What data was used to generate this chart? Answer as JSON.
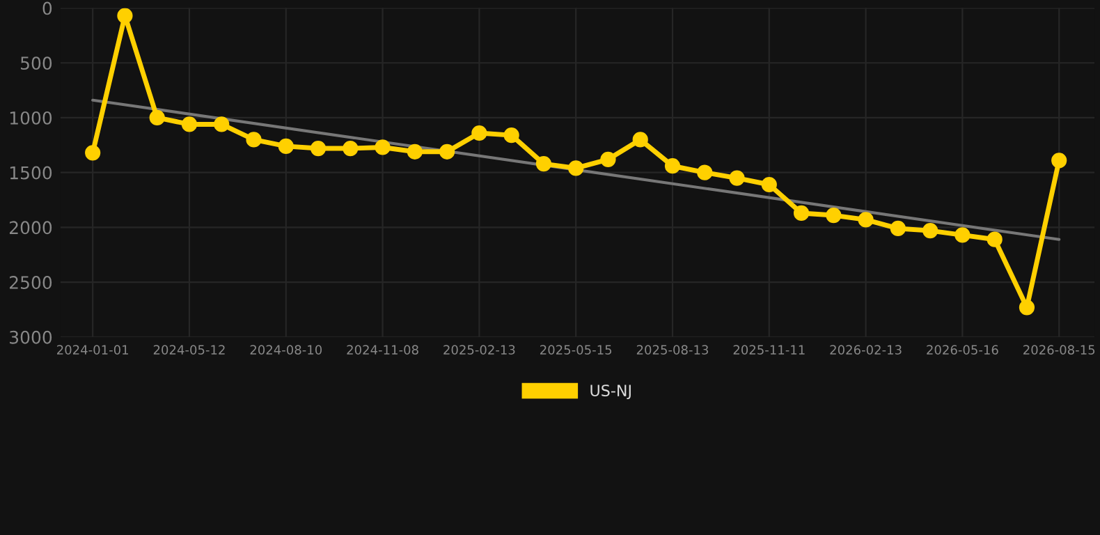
{
  "chart_data": {
    "type": "line",
    "categories": [
      "2024-01-01",
      null,
      null,
      "2024-05-12",
      null,
      null,
      "2024-08-10",
      null,
      null,
      "2024-11-08",
      null,
      null,
      "2025-02-13",
      null,
      null,
      "2025-05-15",
      null,
      null,
      "2025-08-13",
      null,
      null,
      "2025-11-11",
      null,
      null,
      "2026-02-13",
      null,
      null,
      "2026-05-16",
      null,
      null,
      "2026-08-15"
    ],
    "series": [
      {
        "name": "US-NJ",
        "color": "#ffd000",
        "marker": "circle",
        "values": [
          1320,
          70,
          1000,
          1060,
          1060,
          1200,
          1260,
          1280,
          1280,
          1270,
          1310,
          1310,
          1140,
          1160,
          1420,
          1460,
          1380,
          1200,
          1440,
          1500,
          1550,
          1610,
          1870,
          1890,
          1930,
          2010,
          2030,
          2070,
          2110,
          2730,
          1390
        ]
      },
      {
        "type": "line",
        "color": "#777777",
        "marker": "none",
        "values": [
          840,
          null,
          null,
          null,
          null,
          null,
          null,
          null,
          null,
          null,
          null,
          null,
          null,
          null,
          null,
          null,
          null,
          null,
          null,
          null,
          null,
          null,
          null,
          null,
          null,
          null,
          null,
          null,
          null,
          null,
          2110
        ]
      }
    ],
    "ylim": [
      3000,
      0
    ],
    "yticks": [
      0,
      500,
      1000,
      1500,
      2000,
      2500,
      3000
    ],
    "grid": true,
    "legend": "bottom"
  }
}
